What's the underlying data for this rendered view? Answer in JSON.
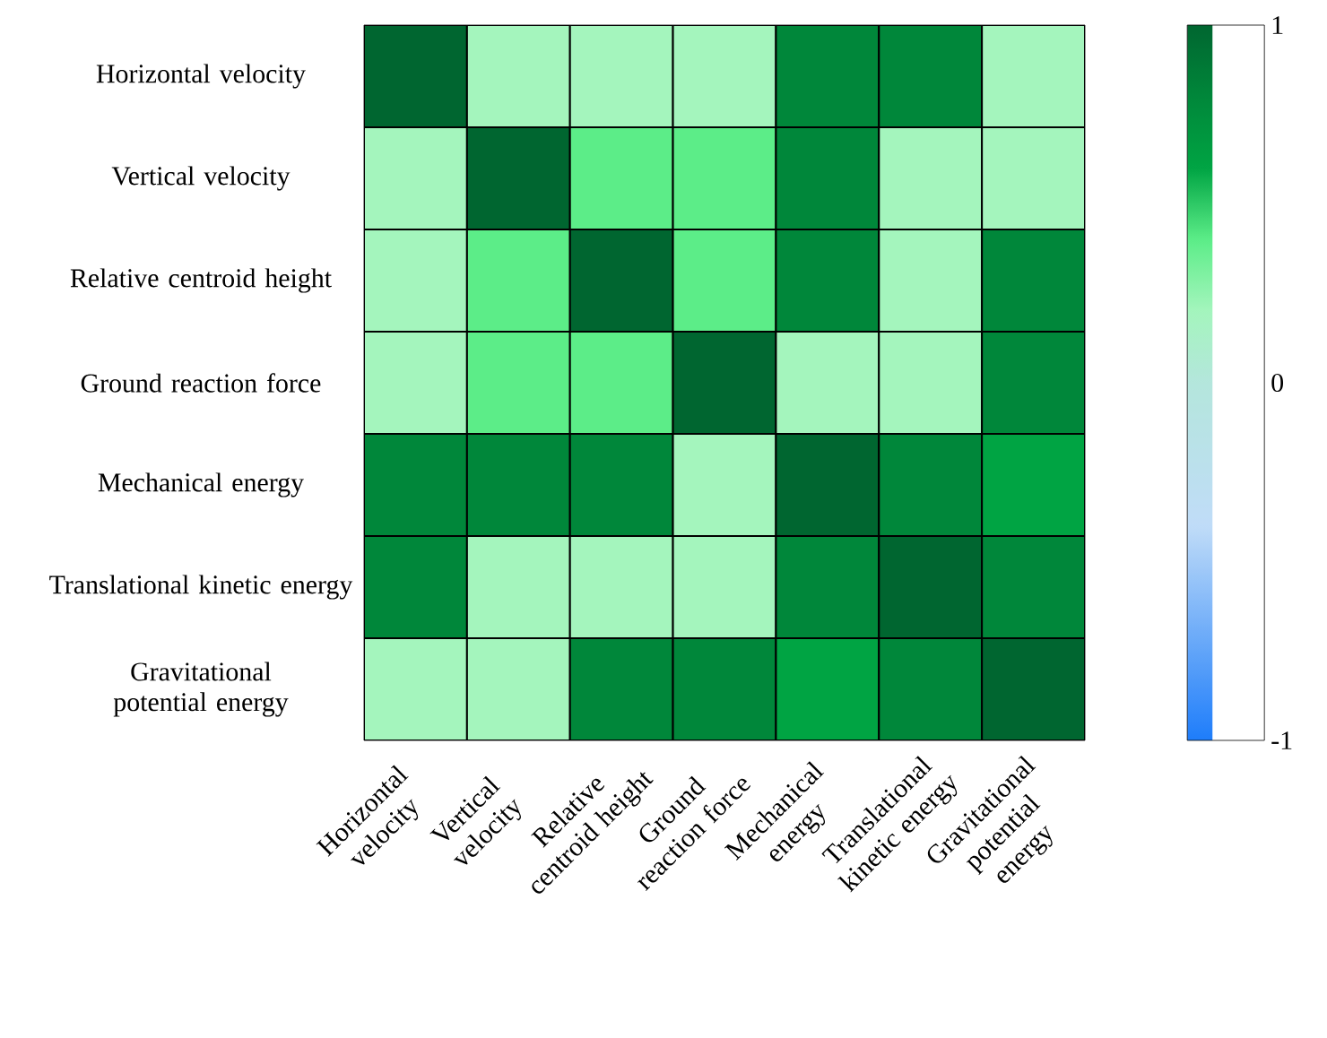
{
  "chart_data": {
    "type": "heatmap",
    "categories": [
      "Horizontal velocity",
      "Vertical velocity",
      "Relative centroid height",
      "Ground reaction force",
      "Mechanical energy",
      "Translational kinetic energy",
      "Gravitational potential energy"
    ],
    "y_categories": [
      "Horizontal velocity",
      "Vertical velocity",
      "Relative centroid height",
      "Ground reaction force",
      "Mechanical energy",
      "Translational kinetic energy",
      "Gravitational potential energy"
    ],
    "cells": [
      [
        1,
        0.2,
        0.2,
        0.2,
        0.8,
        0.8,
        0.2
      ],
      [
        0.2,
        1,
        0.4,
        0.4,
        0.8,
        0.2,
        0.2
      ],
      [
        0.2,
        0.4,
        1,
        0.4,
        0.8,
        0.2,
        0.8
      ],
      [
        0.2,
        0.4,
        0.4,
        1,
        0.2,
        0.2,
        0.8
      ],
      [
        0.8,
        0.8,
        0.8,
        0.2,
        1,
        0.8,
        0.6
      ],
      [
        0.8,
        0.2,
        0.2,
        0.2,
        0.8,
        1,
        0.8
      ],
      [
        0.2,
        0.2,
        0.8,
        0.8,
        0.6,
        0.8,
        1
      ]
    ],
    "clim": [
      -1,
      1
    ],
    "cticks": [
      -1,
      0,
      1
    ]
  }
}
